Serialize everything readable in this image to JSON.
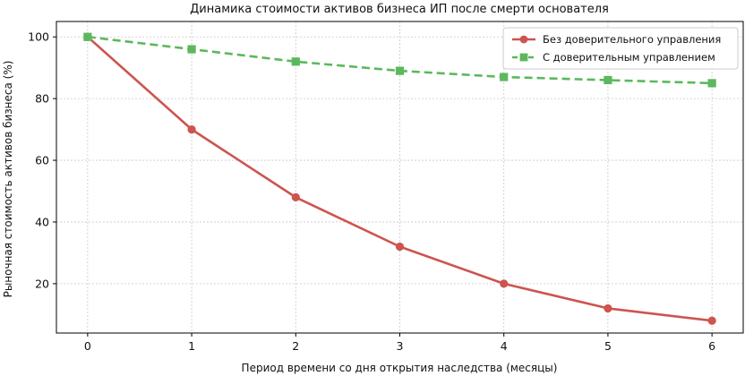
{
  "chart_data": {
    "type": "line",
    "title": "Динамика стоимости активов бизнеса ИП после смерти основателя",
    "xlabel": "Период времени со дня открытия наследства (месяцы)",
    "ylabel": "Рыночная стоимость активов бизнеса (%)",
    "x": [
      0,
      1,
      2,
      3,
      4,
      5,
      6
    ],
    "xlim": [
      -0.3,
      6.3
    ],
    "ylim": [
      4,
      105
    ],
    "xticks": [
      0,
      1,
      2,
      3,
      4,
      5,
      6
    ],
    "yticks": [
      20,
      40,
      60,
      80,
      100
    ],
    "grid": true,
    "legend_position": "top-right",
    "series": [
      {
        "name": "Без доверительного управления",
        "values": [
          100,
          70,
          48,
          32,
          20,
          12,
          8
        ],
        "color": "#cd5450",
        "marker": "circle",
        "line_style": "solid"
      },
      {
        "name": "С доверительным управлением",
        "values": [
          100,
          96,
          92,
          89,
          87,
          86,
          85
        ],
        "color": "#5cb85c",
        "marker": "square",
        "line_style": "dashed"
      }
    ]
  }
}
